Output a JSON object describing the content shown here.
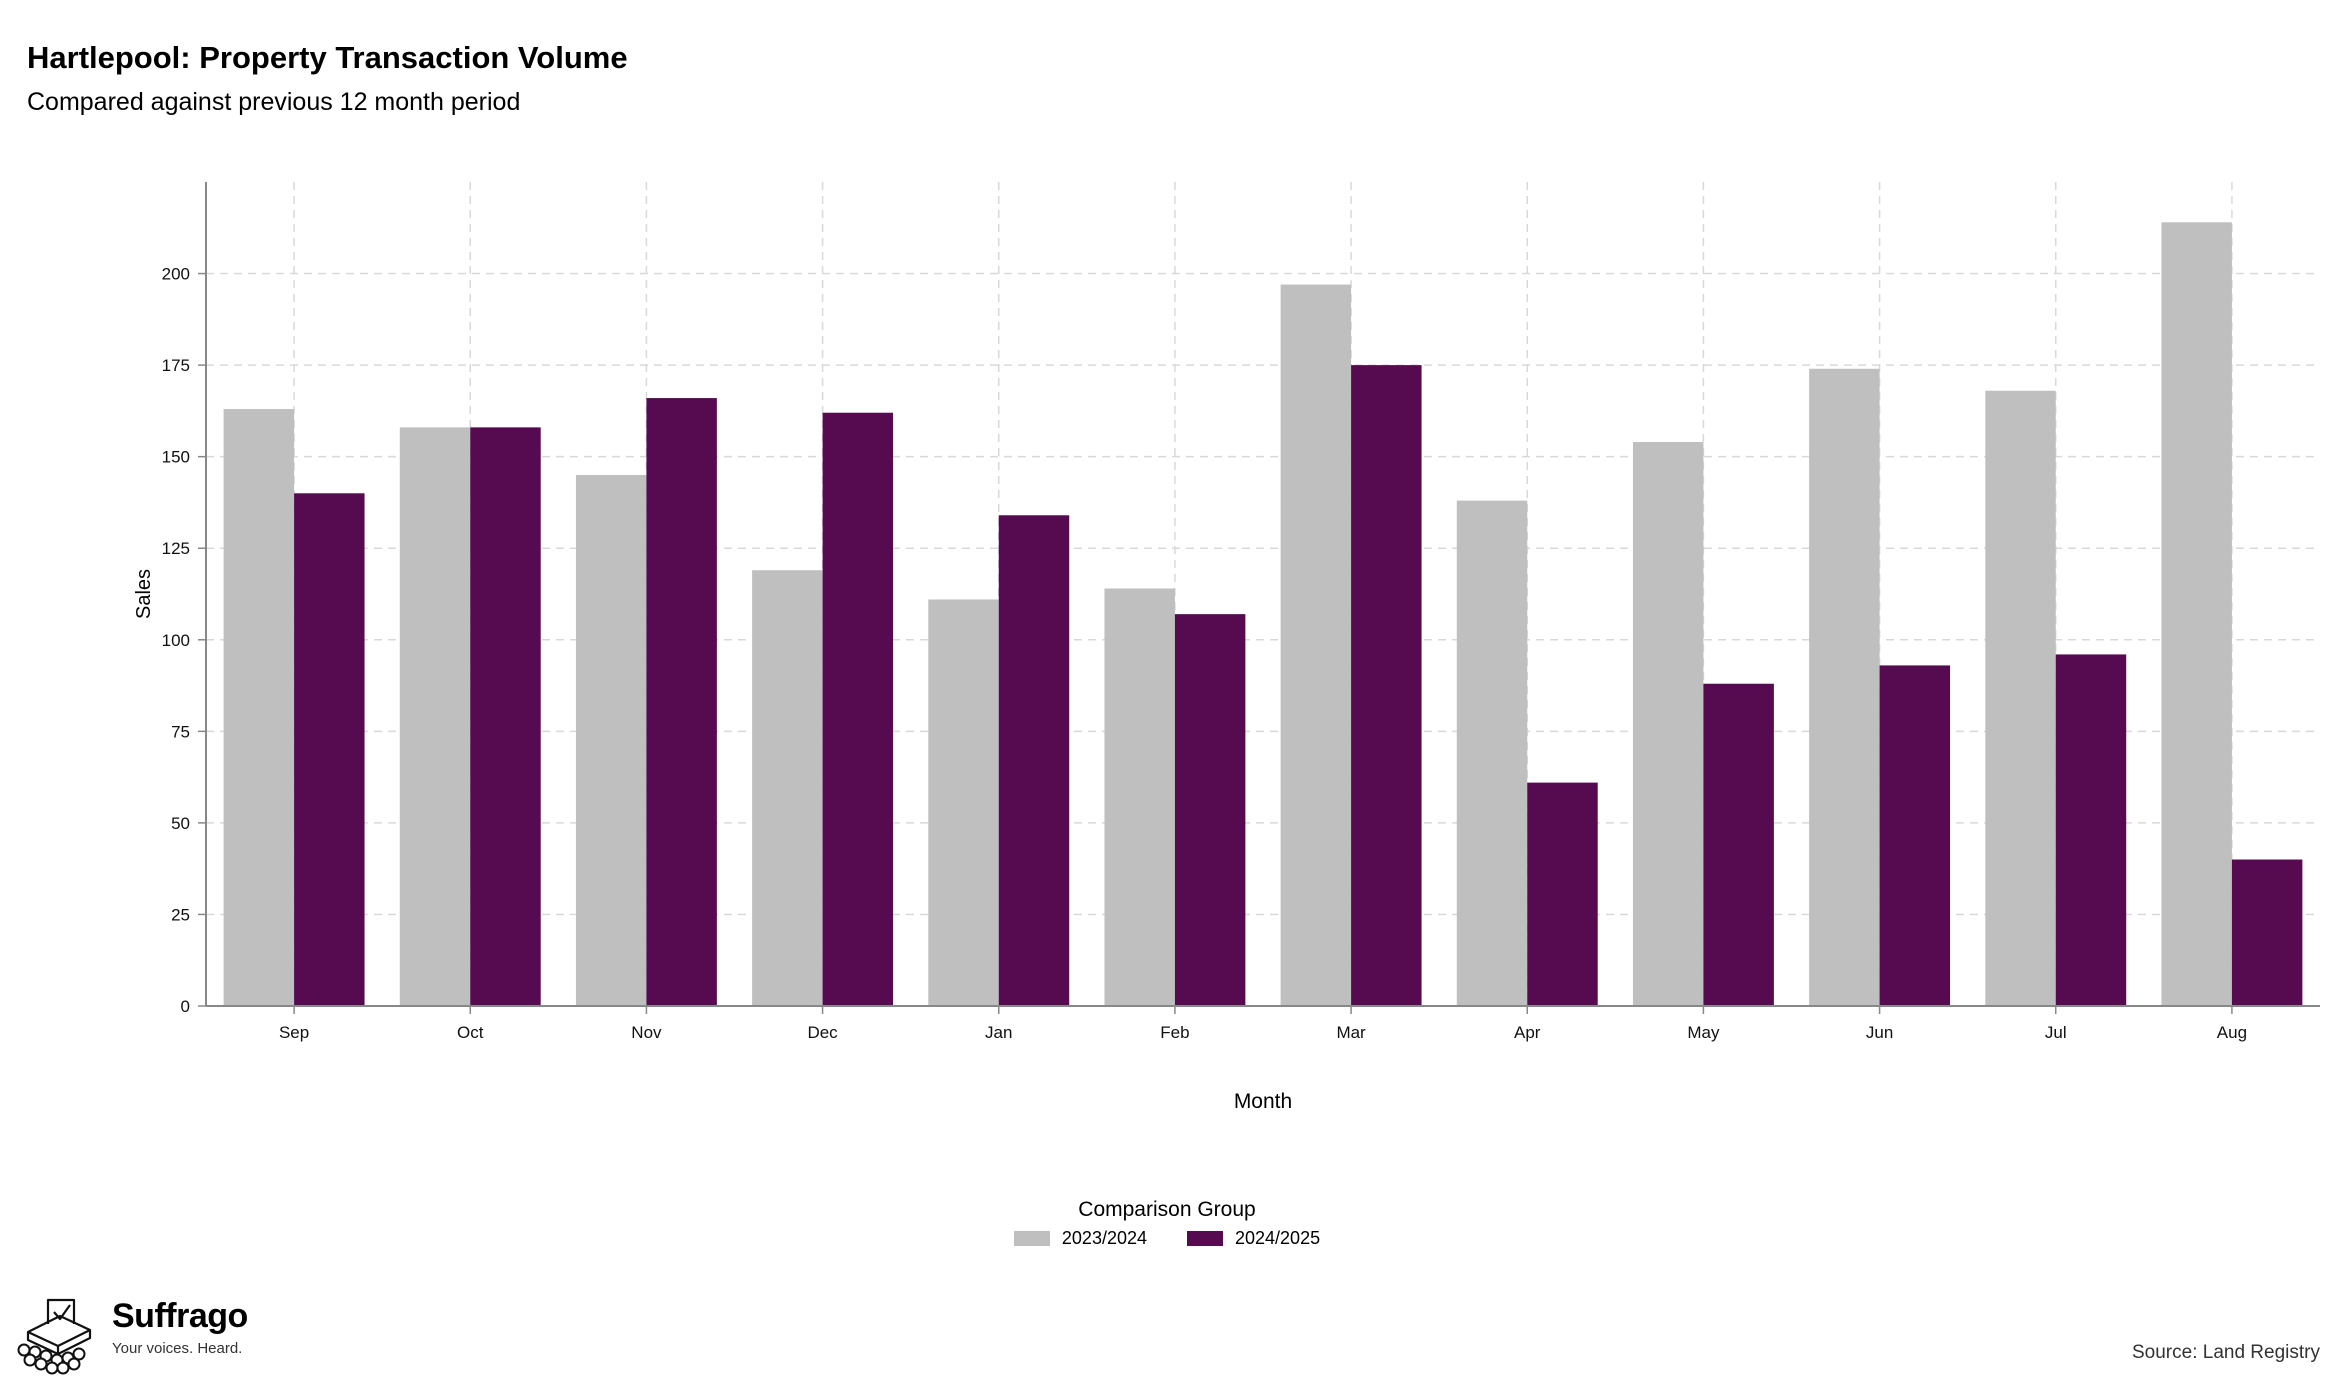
{
  "header": {
    "title": "Hartlepool: Property Transaction Volume",
    "subtitle": "Compared against previous 12 month period"
  },
  "chart_data": {
    "type": "bar",
    "title": "Hartlepool: Property Transaction Volume",
    "subtitle": "Compared against previous 12 month period",
    "xlabel": "Month",
    "ylabel": "Sales",
    "categories": [
      "Sep",
      "Oct",
      "Nov",
      "Dec",
      "Jan",
      "Feb",
      "Mar",
      "Apr",
      "May",
      "Jun",
      "Jul",
      "Aug"
    ],
    "series": [
      {
        "name": "2023/2024",
        "color": "#bfbfbf",
        "values": [
          163,
          158,
          145,
          119,
          111,
          114,
          197,
          138,
          154,
          174,
          168,
          214
        ]
      },
      {
        "name": "2024/2025",
        "color": "#560b51",
        "values": [
          140,
          158,
          166,
          162,
          134,
          107,
          175,
          61,
          88,
          93,
          96,
          40
        ]
      }
    ],
    "yticks": [
      0,
      25,
      50,
      75,
      100,
      125,
      150,
      175,
      200
    ],
    "ylim": [
      0,
      225
    ],
    "grid": true,
    "legend_title": "Comparison Group",
    "legend_position": "bottom"
  },
  "legend": {
    "title": "Comparison Group",
    "items": [
      {
        "label": "2023/2024",
        "color": "#bfbfbf"
      },
      {
        "label": "2024/2025",
        "color": "#560b51"
      }
    ]
  },
  "brand": {
    "name": "Suffrago",
    "tagline": "Your voices. Heard.",
    "logo_icon": "ballot-box-icon"
  },
  "footer": {
    "source": "Source: Land Registry"
  }
}
